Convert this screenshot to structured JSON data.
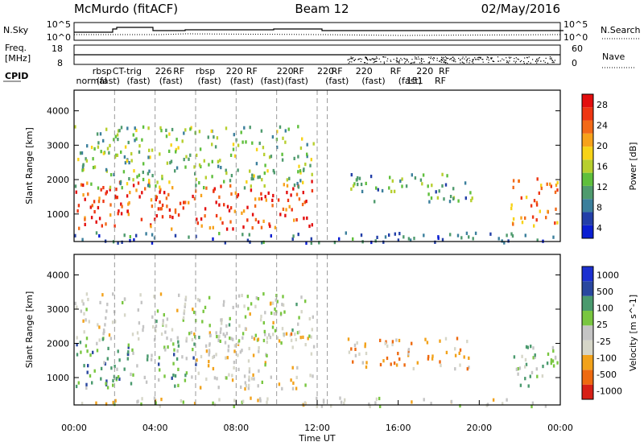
{
  "header": {
    "station": "McMurdo (fitACF)",
    "beam": "Beam 12",
    "date": "02/May/2016"
  },
  "aux_panels": {
    "noise_label_left": "N.Sky",
    "noise_label_right": "N.Search",
    "noise_ticks": [
      "10^5",
      "10^0"
    ],
    "freq_label_top": "Freq.",
    "freq_label_unit": "[MHz]",
    "freq_ticks": [
      "18",
      "8"
    ],
    "nave_label": "Nave",
    "nave_ticks": [
      "60",
      "0"
    ],
    "cpid_label": "CPID",
    "cpid_names": [
      {
        "row": 1,
        "hour": 0.1,
        "text": "normal"
      },
      {
        "row": 0,
        "hour": 0.9,
        "text": "rbsp"
      },
      {
        "row": 1,
        "hour": 1.1,
        "text": "(fast)"
      },
      {
        "row": 0,
        "hour": 1.9,
        "text": "CT-trig"
      },
      {
        "row": 1,
        "hour": 2.6,
        "text": "(fast)"
      },
      {
        "row": 0,
        "hour": 4.0,
        "text": "226"
      },
      {
        "row": 1,
        "hour": 4.2,
        "text": "(fast)"
      },
      {
        "row": 0,
        "hour": 4.9,
        "text": "RF"
      },
      {
        "row": 0,
        "hour": 6.0,
        "text": "rbsp"
      },
      {
        "row": 1,
        "hour": 6.1,
        "text": "(fast)"
      },
      {
        "row": 0,
        "hour": 7.5,
        "text": "220"
      },
      {
        "row": 1,
        "hour": 7.7,
        "text": "(fast)"
      },
      {
        "row": 0,
        "hour": 8.5,
        "text": "RF"
      },
      {
        "row": 1,
        "hour": 9.2,
        "text": "(fast)"
      },
      {
        "row": 0,
        "hour": 10.0,
        "text": "220"
      },
      {
        "row": 0,
        "hour": 10.8,
        "text": "RF"
      },
      {
        "row": 1,
        "hour": 10.4,
        "text": "(fast)"
      },
      {
        "row": 0,
        "hour": 12.0,
        "text": "220"
      },
      {
        "row": 0,
        "hour": 12.7,
        "text": "RF"
      },
      {
        "row": 1,
        "hour": 12.4,
        "text": "(fast)"
      },
      {
        "row": 0,
        "hour": 13.9,
        "text": "220"
      },
      {
        "row": 1,
        "hour": 14.2,
        "text": "(fast)"
      },
      {
        "row": 0,
        "hour": 15.6,
        "text": "RF"
      },
      {
        "row": 1,
        "hour": 16.0,
        "text": "(fast)"
      },
      {
        "row": 0,
        "hour": 16.9,
        "text": "220"
      },
      {
        "row": 1,
        "hour": 16.4,
        "text": "151"
      },
      {
        "row": 0,
        "hour": 18.0,
        "text": "RF"
      },
      {
        "row": 1,
        "hour": 17.8,
        "text": "RF"
      }
    ]
  },
  "chart_data": [
    {
      "type": "heatmap",
      "title": "",
      "xlabel": "",
      "ylabel": "Slant Range [km]",
      "xlim": [
        0,
        24
      ],
      "ylim": [
        200,
        4600
      ],
      "yticks": [
        1000,
        2000,
        3000,
        4000
      ],
      "colorbar_label": "Power [dB]",
      "colorbar_ticks": [
        "28",
        "24",
        "20",
        "16",
        "12",
        "8",
        "4"
      ],
      "colorscale": [
        "#0a1ed2",
        "#233fa8",
        "#3b7f9c",
        "#4f9b6e",
        "#5fbf3c",
        "#b7cf2e",
        "#f7d317",
        "#f7a21b",
        "#f36a18",
        "#ee3612",
        "#e30e0e"
      ],
      "vlim": [
        0,
        30
      ],
      "regions": [
        {
          "t0": 0.0,
          "t1": 11.8,
          "r0": 600,
          "r1": 2000,
          "v": 25
        },
        {
          "t0": 0.0,
          "t1": 11.8,
          "r0": 1800,
          "r1": 2400,
          "v": 12
        },
        {
          "t0": 0.0,
          "t1": 11.8,
          "r0": 2400,
          "r1": 3600,
          "v": 12
        },
        {
          "t0": 0.0,
          "t1": 24.0,
          "r0": 200,
          "r1": 500,
          "v": 6
        },
        {
          "t0": 13.5,
          "t1": 19.7,
          "r0": 1400,
          "r1": 2200,
          "v": 10
        },
        {
          "t0": 21.5,
          "t1": 24.0,
          "r0": 700,
          "r1": 2100,
          "v": 22
        }
      ]
    },
    {
      "type": "heatmap",
      "title": "",
      "xlabel": "Time UT",
      "ylabel": "Slant Range [km]",
      "xlim": [
        0,
        24
      ],
      "ylim": [
        200,
        4600
      ],
      "xticks": [
        "00:00",
        "04:00",
        "08:00",
        "12:00",
        "16:00",
        "20:00",
        "00:00"
      ],
      "yticks": [
        1000,
        2000,
        3000,
        4000
      ],
      "colorbar_label": "Velocity [m s^-1]",
      "colorbar_ticks": [
        "1000",
        "500",
        "100",
        "25",
        "-25",
        "-100",
        "-500",
        "-1000"
      ],
      "colorscale": [
        "#d72016",
        "#ee6a10",
        "#f2a21b",
        "#d6d6c8",
        "#c4c4c4",
        "#79c640",
        "#4a9a6e",
        "#29479f",
        "#1c30d0"
      ],
      "vlim": [
        -1000,
        1000
      ],
      "regions": [
        {
          "t0": 0.0,
          "t1": 6.0,
          "r0": 700,
          "r1": 2100,
          "v": 300
        },
        {
          "t0": 6.0,
          "t1": 11.8,
          "r0": 700,
          "r1": 2400,
          "v": -200
        },
        {
          "t0": 0.0,
          "t1": 11.8,
          "r0": 2100,
          "r1": 3500,
          "v": 0
        },
        {
          "t0": 0.0,
          "t1": 24.0,
          "r0": 200,
          "r1": 450,
          "v": -100
        },
        {
          "t0": 13.5,
          "t1": 19.7,
          "r0": 1300,
          "r1": 2200,
          "v": -400
        },
        {
          "t0": 21.5,
          "t1": 24.0,
          "r0": 700,
          "r1": 2000,
          "v": 150
        }
      ]
    }
  ]
}
